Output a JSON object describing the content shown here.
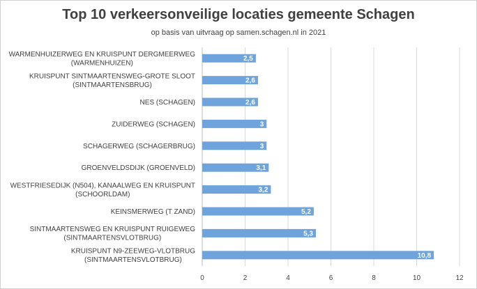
{
  "chart_data": {
    "type": "bar",
    "orientation": "horizontal",
    "title": "Top 10 verkeersonveilige locaties gemeente Schagen",
    "subtitle": "op basis van uitvraag op samen.schagen.nl in 2021",
    "categories": [
      [
        "WARMENHUIZERWEG EN KRUISPUNT DERGMEERWEG",
        "(WARMENHUIZEN)"
      ],
      [
        "KRUISPUNT SINTMAARTENSWEG-GROTE SLOOT",
        "(SINTMAARTENSBRUG)"
      ],
      [
        "NES (SCHAGEN)"
      ],
      [
        "ZUIDERWEG (SCHAGEN)"
      ],
      [
        "SCHAGERWEG (SCHAGERBRUG)"
      ],
      [
        "GROENVELDSDIJK (GROENVELD)"
      ],
      [
        "WESTFRIESEDIJK (N504), KANAALWEG EN KRUISPUNT",
        "(SCHOORLDAM)"
      ],
      [
        "KEINSMERWEG (T ZAND)"
      ],
      [
        "SINTMAARTENSWEG EN KRUISPUNT RUIGEWEG",
        "(SINTMAARTENSVLOTBRUG)"
      ],
      [
        "KRUISPUNT N9-ZEEWEG-VLOTBRUG",
        "(SINTMAARTENSVLOTBRUG)"
      ]
    ],
    "values": [
      2.5,
      2.6,
      2.6,
      3,
      3,
      3.1,
      3.2,
      5.2,
      5.3,
      10.8
    ],
    "data_labels": [
      "2,5",
      "2,6",
      "2,6",
      "3",
      "3",
      "3,1",
      "3,2",
      "5,2",
      "5,3",
      "10,8"
    ],
    "xlim": [
      0,
      12
    ],
    "xticks": [
      0,
      2,
      4,
      6,
      8,
      10,
      12
    ],
    "grid": "vertical",
    "legend": "none",
    "bar_color": "#6fa3dc",
    "grid_color": "#d9d9d9",
    "text_color": "#404040"
  }
}
